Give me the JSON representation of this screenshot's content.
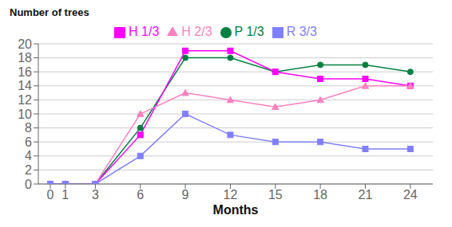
{
  "chart_data": {
    "type": "line",
    "x": [
      0,
      1,
      3,
      6,
      9,
      12,
      15,
      18,
      21,
      24
    ],
    "series": [
      {
        "name": "P 1/3",
        "color": "#008040",
        "marker": "circle",
        "values": [
          0,
          0,
          0,
          8,
          18,
          18,
          16,
          17,
          17,
          16
        ]
      },
      {
        "name": "H 1/3",
        "color": "#FF00FF",
        "marker": "square",
        "values": [
          0,
          0,
          0,
          7,
          19,
          19,
          16,
          15,
          15,
          14
        ]
      },
      {
        "name": "H 2/3",
        "color": "#FF80C0",
        "marker": "triangle",
        "values": [
          0,
          0,
          0,
          10,
          13,
          12,
          11,
          12,
          14,
          14
        ]
      },
      {
        "name": "R 3/3",
        "color": "#8080FF",
        "marker": "square",
        "values": [
          0,
          0,
          0,
          4,
          10,
          7,
          6,
          6,
          5,
          5
        ]
      }
    ],
    "xlabel": "Months",
    "ylabel": "Number of trees",
    "xlim": [
      -0.8,
      25.5
    ],
    "xticks": [
      0,
      1,
      3,
      6,
      9,
      12,
      15,
      18,
      21,
      24
    ],
    "ylim": [
      0,
      20
    ],
    "yticks": [
      0,
      2,
      4,
      6,
      8,
      10,
      12,
      14,
      16,
      18,
      20
    ],
    "grid": "y",
    "legend": "top"
  }
}
